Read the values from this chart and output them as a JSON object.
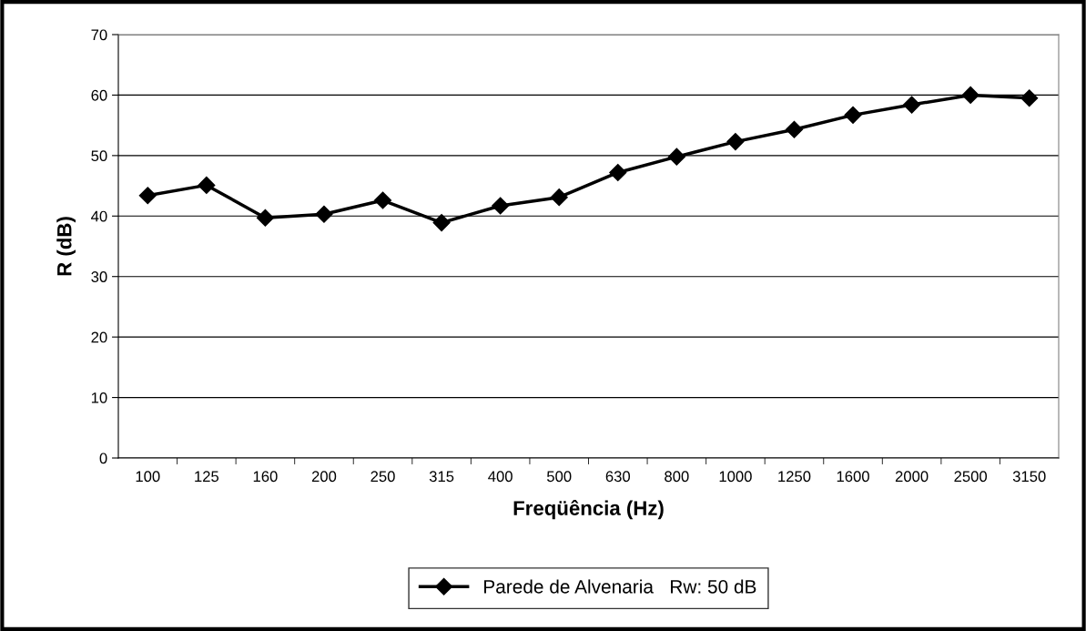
{
  "chart_data": {
    "type": "line",
    "xlabel": "Freqüência (Hz)",
    "ylabel": "R (dB)",
    "categories": [
      "100",
      "125",
      "160",
      "200",
      "250",
      "315",
      "400",
      "500",
      "630",
      "800",
      "1000",
      "1250",
      "1600",
      "2000",
      "2500",
      "3150"
    ],
    "series": [
      {
        "name": "Parede de Alvenaria   Rw: 50 dB",
        "color": "#000000",
        "values": [
          43.4,
          45.1,
          39.7,
          40.3,
          42.6,
          38.9,
          41.7,
          43.1,
          47.2,
          49.8,
          52.3,
          54.3,
          56.7,
          58.4,
          60.0,
          59.5
        ]
      }
    ],
    "ylim": [
      0,
      70
    ],
    "yticks": [
      0,
      10,
      20,
      30,
      40,
      50,
      60,
      70
    ],
    "grid": "y",
    "legend": "bottom",
    "marker": "diamond",
    "line_style": "solid"
  }
}
